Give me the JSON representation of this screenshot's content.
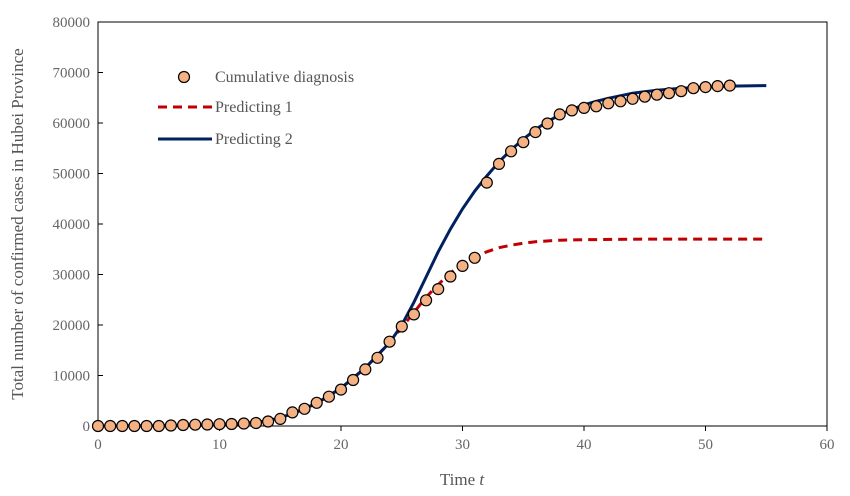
{
  "chart_data": {
    "type": "scatter",
    "title": "",
    "xlabel": "Time",
    "xlabel_var": "t",
    "ylabel": "Total number of confirmed cases in Hubei Province",
    "xlim": [
      0,
      60
    ],
    "ylim": [
      0,
      80000
    ],
    "xticks": [
      0,
      10,
      20,
      30,
      40,
      50,
      60
    ],
    "yticks": [
      0,
      10000,
      20000,
      30000,
      40000,
      50000,
      60000,
      70000,
      80000
    ],
    "grid": false,
    "legend": "top-left",
    "series": [
      {
        "name": "Cumulative diagnosis",
        "kind": "marker",
        "color": "#f4b183",
        "edge_color": "#000000",
        "x": [
          0,
          1,
          2,
          3,
          4,
          5,
          6,
          7,
          8,
          9,
          10,
          11,
          12,
          13,
          14,
          15,
          16,
          17,
          18,
          19,
          20,
          21,
          22,
          23,
          24,
          25,
          26,
          27,
          28,
          29,
          30,
          31,
          32,
          33,
          34,
          35,
          36,
          37,
          38,
          39,
          40,
          41,
          42,
          43,
          44,
          45,
          46,
          47,
          48,
          49,
          50,
          51,
          52
        ],
        "y": [
          0,
          0,
          0,
          0,
          0,
          0,
          100,
          200,
          250,
          300,
          350,
          400,
          500,
          600,
          900,
          1400,
          2700,
          3400,
          4600,
          5800,
          7200,
          9100,
          11200,
          13500,
          16700,
          19700,
          22100,
          24900,
          27100,
          29600,
          31700,
          33300,
          48200,
          51900,
          54400,
          56200,
          58200,
          59900,
          61700,
          62500,
          63000,
          63300,
          63900,
          64300,
          64800,
          65200,
          65600,
          65900,
          66300,
          66900,
          67100,
          67300,
          67400
        ]
      },
      {
        "name": "Predicting 1",
        "kind": "dashed-line",
        "color": "#c00000",
        "x": [
          0,
          5,
          10,
          12,
          14,
          16,
          18,
          20,
          22,
          24,
          25,
          26,
          27,
          28,
          29,
          30,
          31,
          32,
          33,
          34,
          35,
          36,
          38,
          40,
          45,
          50,
          55
        ],
        "y": [
          0,
          30,
          200,
          500,
          1000,
          2400,
          4500,
          7500,
          11500,
          16500,
          19500,
          22500,
          25500,
          28000,
          30300,
          32200,
          33500,
          34500,
          35300,
          35800,
          36200,
          36500,
          36800,
          36900,
          37000,
          37000,
          37000
        ]
      },
      {
        "name": "Predicting 2",
        "kind": "solid-line",
        "color": "#002060",
        "x": [
          0,
          5,
          10,
          12,
          14,
          16,
          18,
          20,
          22,
          24,
          25,
          26,
          27,
          28,
          29,
          30,
          31,
          32,
          33,
          34,
          35,
          36,
          37,
          38,
          39,
          40,
          41,
          42,
          44,
          46,
          48,
          50,
          52,
          55
        ],
        "y": [
          0,
          30,
          200,
          500,
          1000,
          2400,
          4500,
          7500,
          11500,
          16500,
          20000,
          24500,
          29500,
          34500,
          39000,
          43000,
          46500,
          49500,
          52300,
          54700,
          56800,
          58700,
          60300,
          61600,
          62700,
          63600,
          64300,
          64900,
          65900,
          66500,
          66900,
          67100,
          67300,
          67400
        ]
      }
    ]
  }
}
